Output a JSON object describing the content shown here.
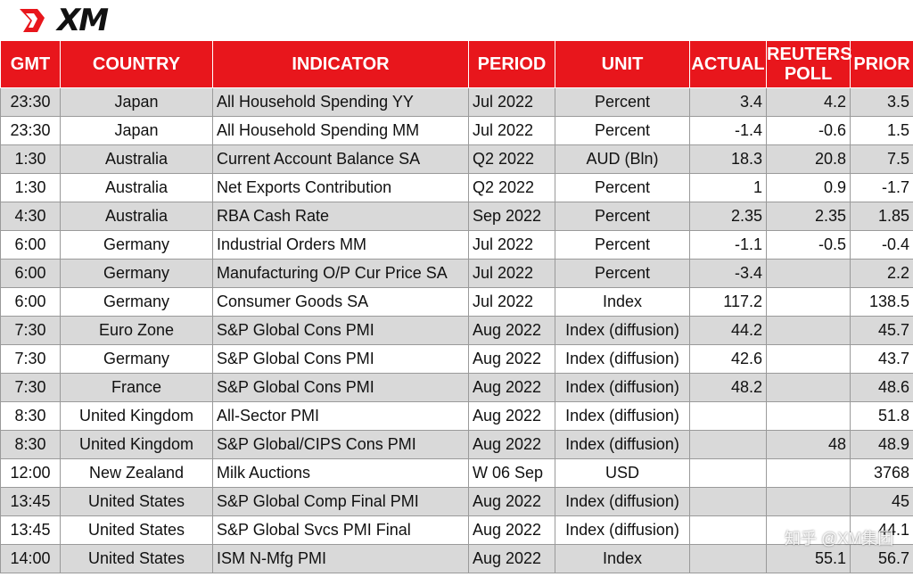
{
  "brand": {
    "logo_text": "XM",
    "accent": "#e8161c",
    "header_text_color": "#ffffff",
    "shade_color": "#d9d9d9"
  },
  "headers": {
    "gmt": "GMT",
    "country": "COUNTRY",
    "indicator": "INDICATOR",
    "period": "PERIOD",
    "unit": "UNIT",
    "actual": "ACTUAL",
    "poll_line1": "REUTERS",
    "poll_line2": "POLL",
    "prior": "PRIOR"
  },
  "rows": [
    {
      "gmt": "23:30",
      "country": "Japan",
      "indicator": "All Household Spending YY",
      "period": "Jul 2022",
      "unit": "Percent",
      "actual": "3.4",
      "poll": "4.2",
      "prior": "3.5"
    },
    {
      "gmt": "23:30",
      "country": "Japan",
      "indicator": "All Household Spending MM",
      "period": "Jul 2022",
      "unit": "Percent",
      "actual": "-1.4",
      "poll": "-0.6",
      "prior": "1.5"
    },
    {
      "gmt": "1:30",
      "country": "Australia",
      "indicator": "Current Account Balance SA",
      "period": "Q2 2022",
      "unit": "AUD (Bln)",
      "actual": "18.3",
      "poll": "20.8",
      "prior": "7.5"
    },
    {
      "gmt": "1:30",
      "country": "Australia",
      "indicator": "Net Exports Contribution",
      "period": "Q2 2022",
      "unit": "Percent",
      "actual": "1",
      "poll": "0.9",
      "prior": "-1.7"
    },
    {
      "gmt": "4:30",
      "country": "Australia",
      "indicator": "RBA Cash Rate",
      "period": "Sep 2022",
      "unit": "Percent",
      "actual": "2.35",
      "poll": "2.35",
      "prior": "1.85"
    },
    {
      "gmt": "6:00",
      "country": "Germany",
      "indicator": "Industrial Orders MM",
      "period": "Jul 2022",
      "unit": "Percent",
      "actual": "-1.1",
      "poll": "-0.5",
      "prior": "-0.4"
    },
    {
      "gmt": "6:00",
      "country": "Germany",
      "indicator": "Manufacturing O/P Cur Price SA",
      "period": "Jul 2022",
      "unit": "Percent",
      "actual": "-3.4",
      "poll": "",
      "prior": "2.2"
    },
    {
      "gmt": "6:00",
      "country": "Germany",
      "indicator": "Consumer Goods SA",
      "period": "Jul 2022",
      "unit": "Index",
      "actual": "117.2",
      "poll": "",
      "prior": "138.5"
    },
    {
      "gmt": "7:30",
      "country": "Euro Zone",
      "indicator": "S&P Global Cons PMI",
      "period": "Aug 2022",
      "unit": "Index (diffusion)",
      "actual": "44.2",
      "poll": "",
      "prior": "45.7"
    },
    {
      "gmt": "7:30",
      "country": "Germany",
      "indicator": "S&P Global Cons PMI",
      "period": "Aug 2022",
      "unit": "Index (diffusion)",
      "actual": "42.6",
      "poll": "",
      "prior": "43.7"
    },
    {
      "gmt": "7:30",
      "country": "France",
      "indicator": "S&P Global Cons PMI",
      "period": "Aug 2022",
      "unit": "Index (diffusion)",
      "actual": "48.2",
      "poll": "",
      "prior": "48.6"
    },
    {
      "gmt": "8:30",
      "country": "United Kingdom",
      "indicator": "All-Sector PMI",
      "period": "Aug 2022",
      "unit": "Index (diffusion)",
      "actual": "",
      "poll": "",
      "prior": "51.8"
    },
    {
      "gmt": "8:30",
      "country": "United Kingdom",
      "indicator": "S&P Global/CIPS Cons PMI",
      "period": "Aug 2022",
      "unit": "Index (diffusion)",
      "actual": "",
      "poll": "48",
      "prior": "48.9"
    },
    {
      "gmt": "12:00",
      "country": "New Zealand",
      "indicator": "Milk Auctions",
      "period": "W 06 Sep",
      "unit": "USD",
      "actual": "",
      "poll": "",
      "prior": "3768"
    },
    {
      "gmt": "13:45",
      "country": "United States",
      "indicator": "S&P Global Comp Final PMI",
      "period": "Aug 2022",
      "unit": "Index (diffusion)",
      "actual": "",
      "poll": "",
      "prior": "45"
    },
    {
      "gmt": "13:45",
      "country": "United States",
      "indicator": "S&P Global Svcs PMI Final",
      "period": "Aug 2022",
      "unit": "Index (diffusion)",
      "actual": "",
      "poll": "",
      "prior": "44.1"
    },
    {
      "gmt": "14:00",
      "country": "United States",
      "indicator": "ISM N-Mfg PMI",
      "period": "Aug 2022",
      "unit": "Index",
      "actual": "",
      "poll": "55.1",
      "prior": "56.7"
    }
  ],
  "watermark": "知乎 @XM集团"
}
